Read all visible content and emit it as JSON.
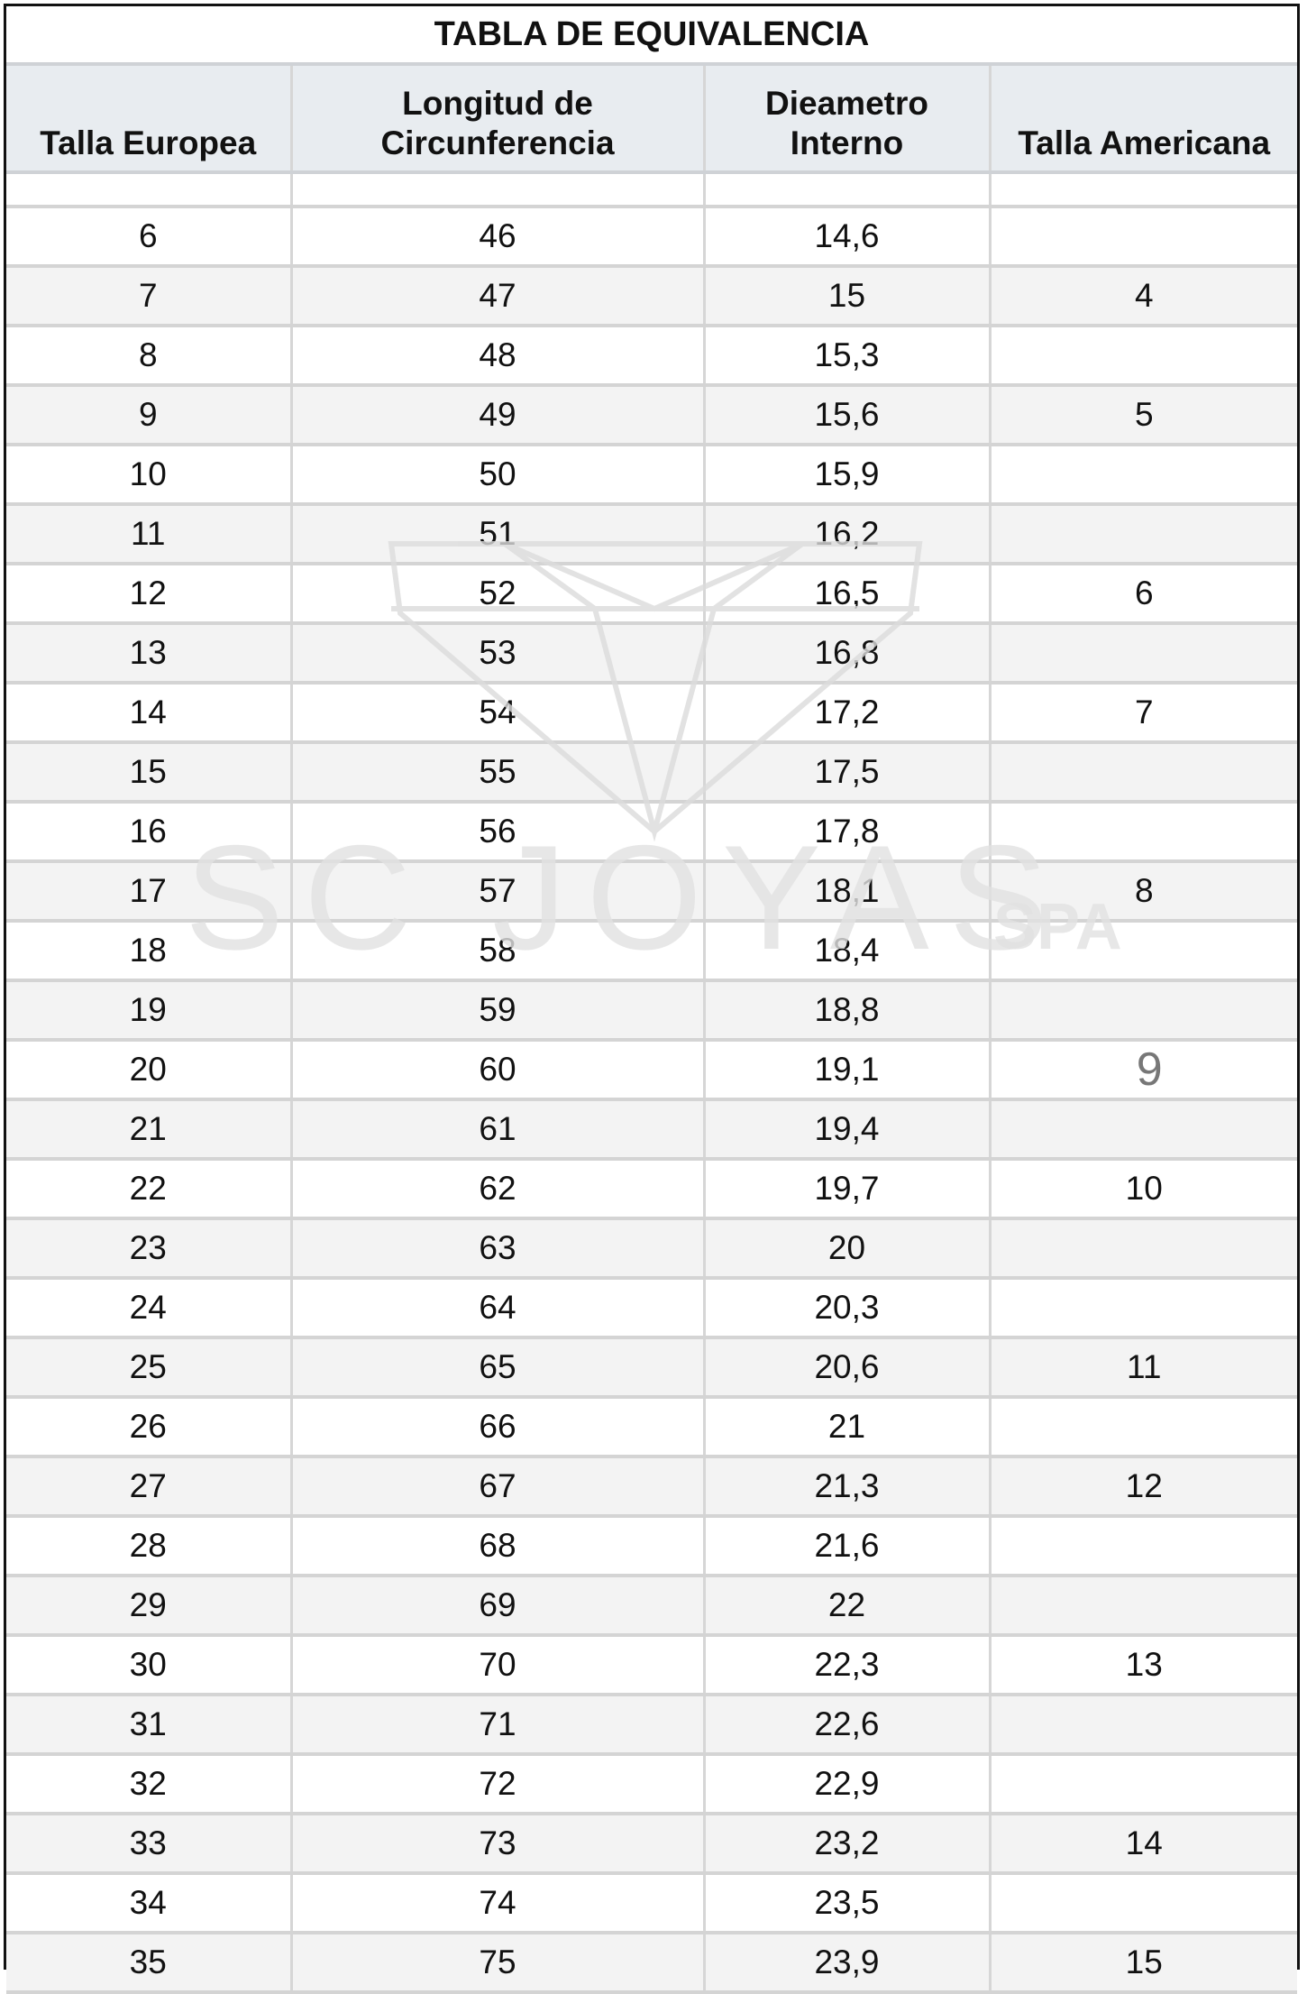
{
  "title": "TABLA DE EQUIVALENCIA",
  "columns": [
    "Talla Europea",
    "Longitud de\nCircunferencia",
    "Dieametro\nInterno",
    "Talla Americana"
  ],
  "rows": [
    [
      "6",
      "46",
      "14,6",
      ""
    ],
    [
      "7",
      "47",
      "15",
      "4"
    ],
    [
      "8",
      "48",
      "15,3",
      ""
    ],
    [
      "9",
      "49",
      "15,6",
      "5"
    ],
    [
      "10",
      "50",
      "15,9",
      ""
    ],
    [
      "11",
      "51",
      "16,2",
      ""
    ],
    [
      "12",
      "52",
      "16,5",
      "6"
    ],
    [
      "13",
      "53",
      "16,8",
      ""
    ],
    [
      "14",
      "54",
      "17,2",
      "7"
    ],
    [
      "15",
      "55",
      "17,5",
      ""
    ],
    [
      "16",
      "56",
      "17,8",
      ""
    ],
    [
      "17",
      "57",
      "18,1",
      "8"
    ],
    [
      "18",
      "58",
      "18,4",
      ""
    ],
    [
      "19",
      "59",
      "18,8",
      ""
    ],
    [
      "20",
      "60",
      "19,1",
      "9"
    ],
    [
      "21",
      "61",
      "19,4",
      ""
    ],
    [
      "22",
      "62",
      "19,7",
      "10"
    ],
    [
      "23",
      "63",
      "20",
      ""
    ],
    [
      "24",
      "64",
      "20,3",
      ""
    ],
    [
      "25",
      "65",
      "20,6",
      "11"
    ],
    [
      "26",
      "66",
      "21",
      ""
    ],
    [
      "27",
      "67",
      "21,3",
      "12"
    ],
    [
      "28",
      "68",
      "21,6",
      ""
    ],
    [
      "29",
      "69",
      "22",
      ""
    ],
    [
      "30",
      "70",
      "22,3",
      "13"
    ],
    [
      "31",
      "71",
      "22,6",
      ""
    ],
    [
      "32",
      "72",
      "22,9",
      ""
    ],
    [
      "33",
      "73",
      "23,2",
      "14"
    ],
    [
      "34",
      "74",
      "23,5",
      ""
    ],
    [
      "35",
      "75",
      "23,9",
      "15"
    ]
  ],
  "watermark": {
    "text": "SC JOYAS",
    "suffix": "SPA",
    "icon": "diamond-icon"
  },
  "colors": {
    "header_bg": "#e8ecf0",
    "alt_row_bg": "#f3f3f3",
    "border": "#d4d4d4",
    "watermark": "#e4e4e4"
  }
}
